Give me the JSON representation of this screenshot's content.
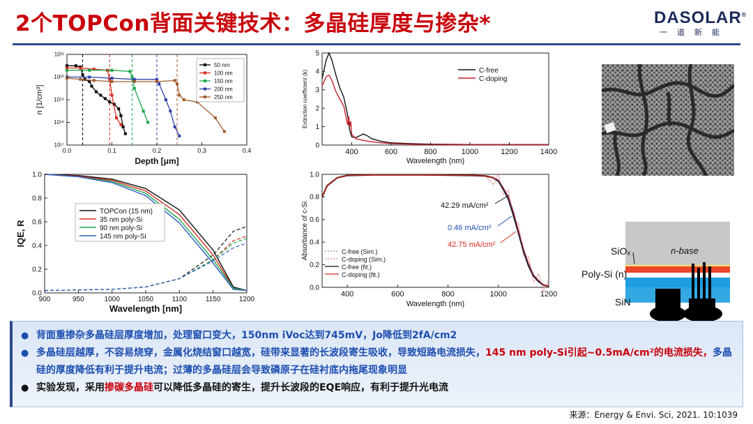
{
  "title": "2个TOPCon背面关键技术：多晶硅厚度与掺杂*",
  "logo": {
    "main": "DASOLAR",
    "sub": "一道新能",
    "reg": "®"
  },
  "colors": {
    "title": "#c8000a",
    "accent_blue": "#1d4fb0",
    "rule": "#2d4a8a"
  },
  "charts": {
    "depth": {
      "type": "line",
      "xlabel": "Depth [μm]",
      "ylabel": "n [1/cm³]",
      "xlim": [
        0,
        0.4
      ],
      "ylim_log": [
        17,
        21
      ],
      "xticks": [
        "0.0",
        "0.1",
        "0.2",
        "0.3",
        "0.4"
      ],
      "yticks": [
        "10¹⁷",
        "10¹⁸",
        "10¹⁹",
        "10²⁰",
        "10²¹"
      ],
      "series": [
        {
          "name": "50 nm",
          "color": "#000000",
          "marker": "square",
          "x": [
            0,
            0.02,
            0.03,
            0.035,
            0.04,
            0.05,
            0.055,
            0.065,
            0.075,
            0.085,
            0.095,
            0.105,
            0.115,
            0.12,
            0.125,
            0.13
          ],
          "y": [
            20.5,
            20.5,
            20.45,
            20.1,
            19.9,
            19.8,
            19.6,
            19.35,
            19.2,
            19.05,
            18.9,
            18.8,
            18.6,
            18.3,
            17.8,
            17.5
          ]
        },
        {
          "name": "100 nm",
          "color": "#d7281f",
          "marker": "circle",
          "x": [
            0,
            0.03,
            0.06,
            0.09,
            0.095,
            0.1,
            0.11,
            0.12
          ],
          "y": [
            20.4,
            20.4,
            20.35,
            20.3,
            19.9,
            19.2,
            18.2,
            17.9
          ]
        },
        {
          "name": "150 nm",
          "color": "#19a64a",
          "marker": "triangle",
          "x": [
            0,
            0.05,
            0.1,
            0.14,
            0.145,
            0.15,
            0.17,
            0.18
          ],
          "y": [
            20.3,
            20.3,
            20.3,
            20.25,
            20.0,
            19.5,
            18.5,
            18.0
          ]
        },
        {
          "name": "200 nm",
          "color": "#2c3fa6",
          "marker": "tri-down",
          "x": [
            0,
            0.05,
            0.1,
            0.15,
            0.2,
            0.205,
            0.22,
            0.23,
            0.24,
            0.25
          ],
          "y": [
            20.0,
            20.0,
            19.95,
            19.9,
            19.9,
            19.7,
            19.0,
            18.5,
            17.8,
            17.4
          ]
        },
        {
          "name": "250 nm",
          "color": "#a05a2c",
          "marker": "diamond",
          "x": [
            0,
            0.03,
            0.06,
            0.1,
            0.15,
            0.2,
            0.24,
            0.245,
            0.25,
            0.26,
            0.29,
            0.33,
            0.35
          ],
          "y": [
            19.95,
            19.9,
            19.85,
            19.8,
            19.8,
            19.8,
            19.85,
            19.7,
            19.2,
            19.0,
            18.9,
            18.2,
            17.6
          ]
        }
      ],
      "guides": [
        0.035,
        0.095,
        0.145,
        0.2,
        0.245
      ]
    },
    "extinction": {
      "type": "line",
      "xlabel": "Wavelength (nm)",
      "ylabel": "Extinction coefficient (k)",
      "xlim": [
        250,
        1400
      ],
      "ylim": [
        0,
        5
      ],
      "xticks": [
        "400",
        "600",
        "800",
        "1000",
        "1200",
        "1400"
      ],
      "yticks": [
        "0",
        "1",
        "2",
        "3",
        "4",
        "5"
      ],
      "series": [
        {
          "name": "C-free",
          "color": "#111111",
          "x": [
            250,
            270,
            285,
            300,
            320,
            340,
            360,
            380,
            390,
            400,
            420,
            440,
            460,
            480,
            500,
            550,
            600,
            700,
            800,
            900,
            1000,
            1200,
            1400
          ],
          "y": [
            3.6,
            4.6,
            5.0,
            4.6,
            3.8,
            3.1,
            2.6,
            1.6,
            0.8,
            0.45,
            0.4,
            0.5,
            0.6,
            0.5,
            0.35,
            0.2,
            0.12,
            0.08,
            0.05,
            0.04,
            0.03,
            0.03,
            0.03
          ]
        },
        {
          "name": "C-doping",
          "color": "#c8202a",
          "x": [
            250,
            270,
            285,
            300,
            320,
            340,
            360,
            370,
            380,
            385,
            390,
            395,
            400,
            420,
            440,
            460,
            500,
            550,
            600,
            700,
            800,
            1000,
            1200,
            1400
          ],
          "y": [
            3.2,
            3.7,
            3.8,
            3.5,
            2.9,
            2.5,
            2.1,
            1.6,
            1.1,
            1.55,
            1.0,
            1.3,
            0.6,
            0.35,
            0.3,
            0.25,
            0.18,
            0.12,
            0.08,
            0.05,
            0.04,
            0.03,
            0.03,
            0.03
          ]
        }
      ]
    },
    "iqe": {
      "type": "line",
      "xlabel": "Wavelength [nm]",
      "ylabel": "IQE, R",
      "xlim": [
        900,
        1200
      ],
      "ylim": [
        0,
        1
      ],
      "xticks": [
        "900",
        "950",
        "1000",
        "1050",
        "1100",
        "1150",
        "1200"
      ],
      "yticks": [
        "0.0",
        "0.2",
        "0.4",
        "0.6",
        "0.8",
        "1.0"
      ],
      "series": [
        {
          "name": "TOPCon (15 nm)",
          "color": "#111111",
          "iqe": [
            [
              900,
              1.0
            ],
            [
              950,
              0.99
            ],
            [
              1000,
              0.96
            ],
            [
              1050,
              0.88
            ],
            [
              1100,
              0.7
            ],
            [
              1150,
              0.36
            ],
            [
              1180,
              0.05
            ],
            [
              1200,
              0.02
            ]
          ],
          "r": [
            [
              900,
              0.02
            ],
            [
              1000,
              0.03
            ],
            [
              1050,
              0.05
            ],
            [
              1100,
              0.12
            ],
            [
              1150,
              0.32
            ],
            [
              1180,
              0.52
            ],
            [
              1200,
              0.56
            ]
          ]
        },
        {
          "name": "35 nm poly-Si",
          "color": "#d7281f",
          "iqe": [
            [
              900,
              1.0
            ],
            [
              950,
              0.985
            ],
            [
              1000,
              0.95
            ],
            [
              1050,
              0.86
            ],
            [
              1100,
              0.66
            ],
            [
              1150,
              0.32
            ],
            [
              1180,
              0.04
            ],
            [
              1200,
              0.02
            ]
          ],
          "r": [
            [
              900,
              0.02
            ],
            [
              1000,
              0.03
            ],
            [
              1050,
              0.05
            ],
            [
              1100,
              0.12
            ],
            [
              1150,
              0.28
            ],
            [
              1180,
              0.44
            ],
            [
              1200,
              0.48
            ]
          ]
        },
        {
          "name": "90 nm poly-Si",
          "color": "#19a64a",
          "iqe": [
            [
              900,
              1.0
            ],
            [
              950,
              0.98
            ],
            [
              1000,
              0.94
            ],
            [
              1050,
              0.84
            ],
            [
              1100,
              0.62
            ],
            [
              1150,
              0.28
            ],
            [
              1180,
              0.04
            ],
            [
              1200,
              0.02
            ]
          ],
          "r": [
            [
              900,
              0.02
            ],
            [
              1000,
              0.03
            ],
            [
              1050,
              0.05
            ],
            [
              1100,
              0.12
            ],
            [
              1150,
              0.28
            ],
            [
              1180,
              0.42
            ],
            [
              1200,
              0.46
            ]
          ]
        },
        {
          "name": "145 nm poly-Si",
          "color": "#2c5cc8",
          "iqe": [
            [
              900,
              1.0
            ],
            [
              950,
              0.98
            ],
            [
              1000,
              0.93
            ],
            [
              1050,
              0.82
            ],
            [
              1100,
              0.59
            ],
            [
              1150,
              0.25
            ],
            [
              1180,
              0.03
            ],
            [
              1200,
              0.02
            ]
          ],
          "r": [
            [
              900,
              0.02
            ],
            [
              1000,
              0.03
            ],
            [
              1050,
              0.05
            ],
            [
              1100,
              0.12
            ],
            [
              1150,
              0.27
            ],
            [
              1180,
              0.38
            ],
            [
              1200,
              0.42
            ]
          ]
        }
      ]
    },
    "absorbance": {
      "type": "line",
      "xlabel": "Wavelength (nm)",
      "ylabel": "Absorbance of c-Si",
      "xlim": [
        300,
        1200
      ],
      "ylim": [
        0,
        1
      ],
      "xticks": [
        "400",
        "600",
        "800",
        "1000",
        "1200"
      ],
      "yticks": [
        "0.0",
        "0.2",
        "0.4",
        "0.6",
        "0.8",
        "1.0"
      ],
      "annotations": [
        {
          "text": "42.29 mA/cm²",
          "color": "#111111"
        },
        {
          "text": "0.46 mA/cm²",
          "color": "#1d4fb0"
        },
        {
          "text": "42.75 mA/cm²",
          "color": "#d7281f"
        }
      ],
      "legend": [
        "C-free (Sim.)",
        "C-doping (Sim.)",
        "C-free (fit.)",
        "C-doping (fit.)"
      ],
      "series": [
        {
          "name": "C-free (fit.)",
          "color": "#111111",
          "x": [
            300,
            320,
            360,
            400,
            500,
            600,
            700,
            800,
            900,
            950,
            980,
            1000,
            1020,
            1040,
            1060,
            1080,
            1100,
            1120,
            1140,
            1160,
            1180,
            1200
          ],
          "y": [
            0.8,
            0.9,
            0.97,
            0.99,
            0.995,
            0.995,
            0.995,
            0.993,
            0.99,
            0.985,
            0.97,
            0.94,
            0.87,
            0.78,
            0.64,
            0.48,
            0.32,
            0.19,
            0.1,
            0.05,
            0.02,
            0.01
          ]
        },
        {
          "name": "C-doping (fit.)",
          "color": "#d7281f",
          "x": [
            300,
            320,
            360,
            400,
            500,
            600,
            700,
            800,
            900,
            950,
            980,
            1000,
            1020,
            1040,
            1060,
            1080,
            1100,
            1120,
            1140,
            1160,
            1180,
            1200
          ],
          "y": [
            0.8,
            0.9,
            0.97,
            0.99,
            0.995,
            0.995,
            0.995,
            0.993,
            0.99,
            0.985,
            0.97,
            0.95,
            0.88,
            0.8,
            0.67,
            0.5,
            0.34,
            0.21,
            0.11,
            0.06,
            0.02,
            0.01
          ]
        }
      ]
    }
  },
  "diagram": {
    "sio_label": "SiOₓ",
    "poly_label": "Poly-Si (n)",
    "sin_label": "SiN",
    "base_label": "n-base"
  },
  "notes": [
    {
      "bullet": "●",
      "bullet_color": "#1d4fb0",
      "parts": [
        {
          "t": "背面重掺杂多晶硅层厚度增加，处理窗口变大，150nm iVoc达到745mV，Jo降低到2fA/cm2",
          "c": "blue"
        }
      ]
    },
    {
      "bullet": "●",
      "bullet_color": "#1d4fb0",
      "parts": [
        {
          "t": "多晶硅层越厚，不容易烧穿，金属化烧结窗口越宽，硅带来显著的长波段寄生吸收，导致短路电流损失，",
          "c": "blue"
        },
        {
          "t": "145 nm poly-Si引起~0.5mA/cm²的电流损失，",
          "c": "red"
        },
        {
          "t": "多晶硅的厚度降低有利于提升电流；过薄的多晶硅层会导致磷原子在硅衬底内拖尾现象明显",
          "c": "blue"
        }
      ]
    },
    {
      "bullet": "●",
      "bullet_color": "#111111",
      "parts": [
        {
          "t": "实验发现，采用",
          "c": "black"
        },
        {
          "t": "掺碳多晶硅",
          "c": "red"
        },
        {
          "t": "可以降低多晶硅的寄生，提升长波段的EQE响应，有利于提升光电流",
          "c": "black"
        }
      ]
    }
  ],
  "source": "来源：Energy & Envi. Sci, 2021. 10:1039"
}
